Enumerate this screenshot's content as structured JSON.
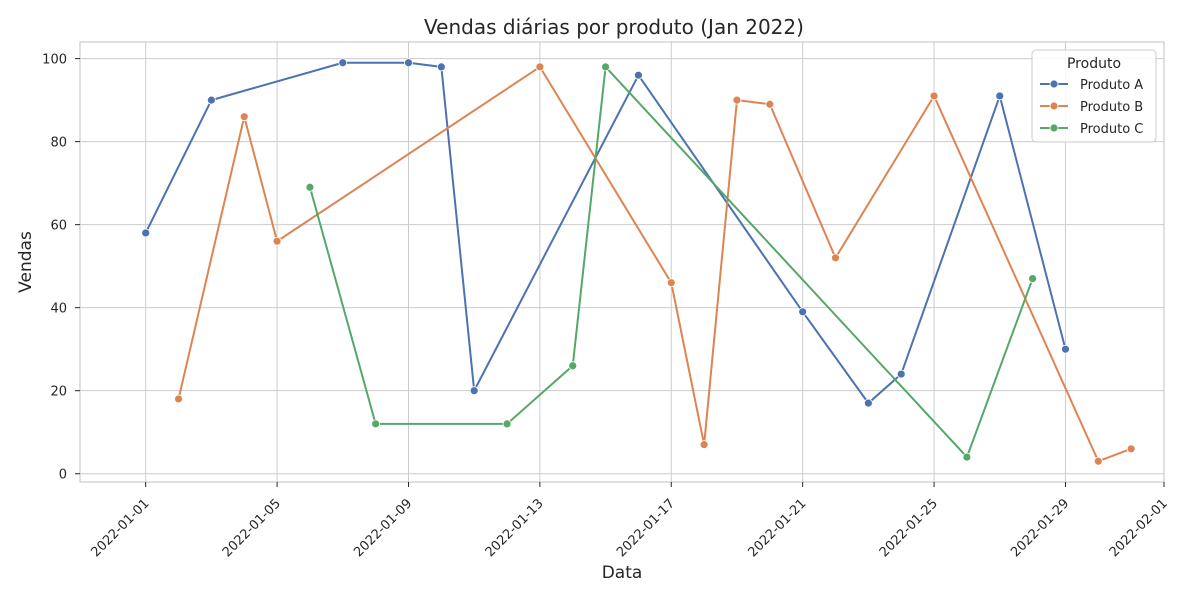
{
  "chart_data": {
    "type": "line",
    "title": "Vendas diárias por produto (Jan 2022)",
    "xlabel": "Data",
    "ylabel": "Vendas",
    "xlim": [
      "2021-12-30",
      "2022-02-01"
    ],
    "ylim": [
      -2,
      104
    ],
    "x_ticks": [
      "2022-01-01",
      "2022-01-05",
      "2022-01-09",
      "2022-01-13",
      "2022-01-17",
      "2022-01-21",
      "2022-01-25",
      "2022-01-29",
      "2022-02-01"
    ],
    "y_ticks": [
      0,
      20,
      40,
      60,
      80,
      100
    ],
    "grid": true,
    "legend": {
      "title": "Produto",
      "position": "top-right"
    },
    "series": [
      {
        "name": "Produto A",
        "color": "#4c72b0",
        "points": [
          {
            "x": "2022-01-01",
            "y": 58
          },
          {
            "x": "2022-01-03",
            "y": 90
          },
          {
            "x": "2022-01-07",
            "y": 99
          },
          {
            "x": "2022-01-09",
            "y": 99
          },
          {
            "x": "2022-01-10",
            "y": 98
          },
          {
            "x": "2022-01-11",
            "y": 20
          },
          {
            "x": "2022-01-16",
            "y": 96
          },
          {
            "x": "2022-01-21",
            "y": 39
          },
          {
            "x": "2022-01-23",
            "y": 17
          },
          {
            "x": "2022-01-24",
            "y": 24
          },
          {
            "x": "2022-01-27",
            "y": 91
          },
          {
            "x": "2022-01-29",
            "y": 30
          }
        ]
      },
      {
        "name": "Produto B",
        "color": "#dd8452",
        "points": [
          {
            "x": "2022-01-02",
            "y": 18
          },
          {
            "x": "2022-01-04",
            "y": 86
          },
          {
            "x": "2022-01-05",
            "y": 56
          },
          {
            "x": "2022-01-13",
            "y": 98
          },
          {
            "x": "2022-01-17",
            "y": 46
          },
          {
            "x": "2022-01-18",
            "y": 7
          },
          {
            "x": "2022-01-19",
            "y": 90
          },
          {
            "x": "2022-01-20",
            "y": 89
          },
          {
            "x": "2022-01-22",
            "y": 52
          },
          {
            "x": "2022-01-25",
            "y": 91
          },
          {
            "x": "2022-01-30",
            "y": 3
          },
          {
            "x": "2022-01-31",
            "y": 6
          }
        ]
      },
      {
        "name": "Produto C",
        "color": "#55a868",
        "points": [
          {
            "x": "2022-01-06",
            "y": 69
          },
          {
            "x": "2022-01-08",
            "y": 12
          },
          {
            "x": "2022-01-12",
            "y": 12
          },
          {
            "x": "2022-01-14",
            "y": 26
          },
          {
            "x": "2022-01-15",
            "y": 98
          },
          {
            "x": "2022-01-26",
            "y": 4
          },
          {
            "x": "2022-01-28",
            "y": 47
          }
        ]
      }
    ]
  }
}
